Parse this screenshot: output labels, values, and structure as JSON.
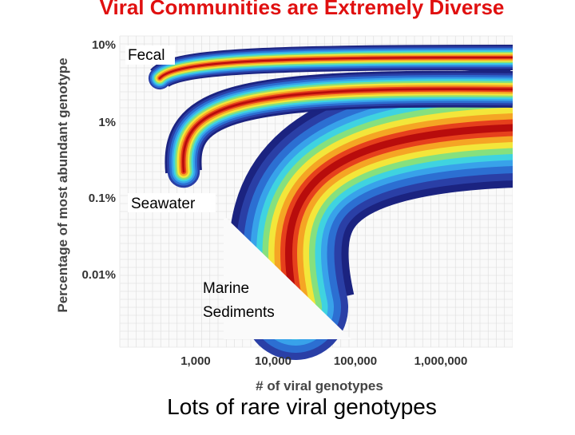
{
  "slide": {
    "title": "Viral Communities are Extremely Diverse",
    "figure": {
      "y_axis_label": "Percentage of most abundant genotype",
      "y_tick_labels": [
        "10%",
        "1%",
        "0.1%",
        "0.01%"
      ],
      "x_axis_label": "# of viral genotypes",
      "x_tick_labels": [
        "1,000",
        "10,000",
        "100,000",
        "1,000,000"
      ],
      "region_labels": [
        "Fecal",
        "Seawater",
        "Marine",
        "Sediments"
      ]
    },
    "caption": "Lots of rare viral genotypes"
  }
}
